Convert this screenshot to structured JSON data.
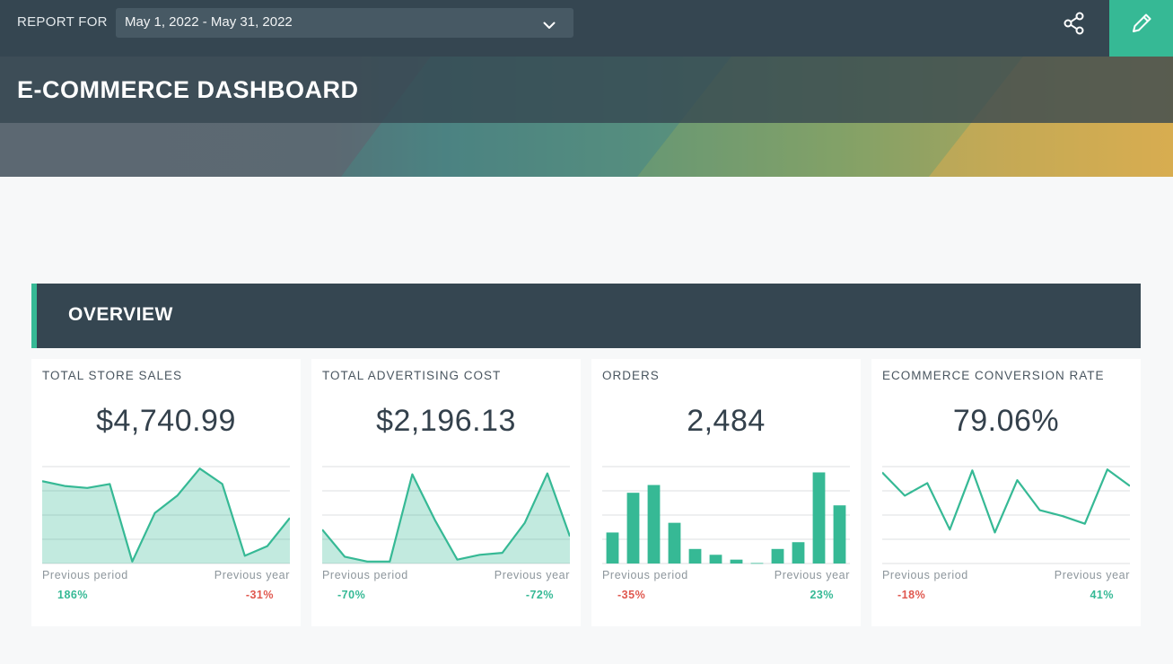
{
  "header": {
    "report_for_label": "REPORT FOR",
    "date_range": "May 1, 2022 - May 31, 2022",
    "icons": {
      "dropdown": "chevron-down-icon",
      "share": "share-icon",
      "edit": "pencil-icon"
    },
    "colors": {
      "topbar": "#354651",
      "accent": "#36b995"
    }
  },
  "hero": {
    "title": "E-COMMERCE DASHBOARD"
  },
  "section": {
    "title": "OVERVIEW"
  },
  "cards": [
    {
      "title": "TOTAL STORE SALES",
      "value": "$4,740.99",
      "chart_type": "area",
      "prev_period_label": "Previous period",
      "prev_period_value": "186%",
      "prev_period_sign": "pos",
      "prev_year_label": "Previous year",
      "prev_year_value": "-31%",
      "prev_year_sign": "neg"
    },
    {
      "title": "TOTAL ADVERTISING COST",
      "value": "$2,196.13",
      "chart_type": "area",
      "prev_period_label": "Previous period",
      "prev_period_value": "-70%",
      "prev_period_sign": "pos",
      "prev_year_label": "Previous year",
      "prev_year_value": "-72%",
      "prev_year_sign": "pos"
    },
    {
      "title": "ORDERS",
      "value": "2,484",
      "chart_type": "bar",
      "prev_period_label": "Previous period",
      "prev_period_value": "-35%",
      "prev_period_sign": "neg",
      "prev_year_label": "Previous year",
      "prev_year_value": "23%",
      "prev_year_sign": "pos"
    },
    {
      "title": "ECOMMERCE CONVERSION RATE",
      "value": "79.06%",
      "chart_type": "line",
      "prev_period_label": "Previous period",
      "prev_period_value": "-18%",
      "prev_period_sign": "neg",
      "prev_year_label": "Previous year",
      "prev_year_value": "41%",
      "prev_year_sign": "pos"
    }
  ],
  "chart_data": [
    {
      "type": "area",
      "values": [
        85,
        80,
        78,
        82,
        2,
        52,
        70,
        98,
        82,
        8,
        18,
        47
      ],
      "ylim": [
        0,
        100
      ]
    },
    {
      "type": "area",
      "values": [
        35,
        7,
        2,
        2,
        92,
        45,
        4,
        9,
        11,
        42,
        93,
        28
      ],
      "ylim": [
        0,
        100
      ]
    },
    {
      "type": "bar",
      "values": [
        32,
        73,
        81,
        42,
        15,
        9,
        4,
        0.5,
        15,
        22,
        94,
        60
      ],
      "ylim": [
        0,
        100
      ]
    },
    {
      "type": "line",
      "values": [
        94,
        70,
        83,
        35,
        96,
        32,
        86,
        55,
        49,
        41,
        97,
        80
      ],
      "ylim": [
        0,
        100
      ]
    }
  ]
}
